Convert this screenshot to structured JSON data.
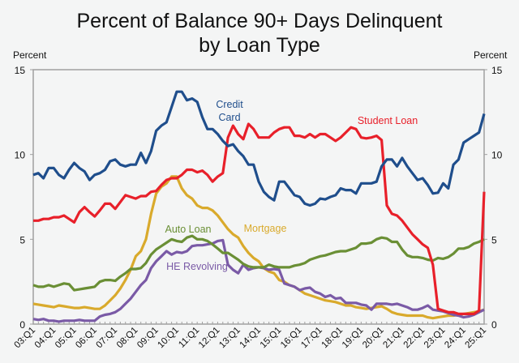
{
  "chart_data": {
    "type": "line",
    "title": [
      "Percent of Balance 90+ Days Delinquent",
      "by Loan Type"
    ],
    "ylabel_left": "Percent",
    "ylabel_right": "Percent",
    "ylim": [
      0,
      15
    ],
    "yticks": [
      0,
      5,
      10,
      15
    ],
    "grid": false,
    "x_start": "03:Q1",
    "x_end": "25:Q1",
    "x_frequency": "quarterly",
    "xtick_labels": [
      "03:Q1",
      "04:Q1",
      "05:Q1",
      "06:Q1",
      "07:Q1",
      "08:Q1",
      "09:Q1",
      "10:Q1",
      "11:Q1",
      "12:Q1",
      "13:Q1",
      "14:Q1",
      "15:Q1",
      "16:Q1",
      "17:Q1",
      "18:Q1",
      "19:Q1",
      "20:Q1",
      "21:Q1",
      "22:Q1",
      "23:Q1",
      "24:Q1",
      "25:Q1"
    ],
    "series": [
      {
        "name": "Credit Card",
        "label_lines": [
          "Credit",
          "Card"
        ],
        "color": "#1f4e8c",
        "values": [
          8.8,
          8.9,
          8.6,
          9.2,
          9.2,
          8.8,
          8.6,
          9.1,
          9.5,
          9.2,
          9.0,
          8.5,
          8.8,
          8.9,
          9.1,
          9.6,
          9.7,
          9.4,
          9.3,
          9.4,
          9.4,
          10.1,
          9.5,
          10.2,
          11.4,
          11.7,
          11.9,
          12.8,
          13.7,
          13.7,
          13.2,
          13.3,
          13.1,
          12.2,
          11.5,
          11.5,
          11.2,
          10.8,
          10.5,
          10.6,
          10.2,
          9.9,
          9.4,
          9.4,
          8.4,
          7.8,
          7.5,
          7.3,
          8.4,
          8.4,
          8.0,
          7.6,
          7.5,
          7.1,
          7.0,
          7.1,
          7.4,
          7.35,
          7.5,
          7.6,
          8.0,
          7.9,
          7.9,
          7.7,
          8.3,
          8.3,
          8.3,
          8.4,
          9.3,
          9.7,
          9.7,
          9.3,
          9.8,
          9.3,
          8.9,
          8.5,
          8.6,
          8.2,
          7.7,
          7.75,
          8.3,
          8.0,
          9.4,
          9.7,
          10.7,
          10.9,
          11.1,
          11.3,
          12.4
        ]
      },
      {
        "name": "Student Loan",
        "label_lines": [
          "Student Loan"
        ],
        "color": "#e8202a",
        "values": [
          6.1,
          6.1,
          6.2,
          6.2,
          6.3,
          6.3,
          6.4,
          6.2,
          6.0,
          6.6,
          6.9,
          6.6,
          6.35,
          6.7,
          7.1,
          7.1,
          6.8,
          7.2,
          7.6,
          7.5,
          7.4,
          7.55,
          7.55,
          7.8,
          7.85,
          8.2,
          8.5,
          8.6,
          8.6,
          8.8,
          9.1,
          9.1,
          8.95,
          9.05,
          8.8,
          8.4,
          8.7,
          8.9,
          11.0,
          11.7,
          11.2,
          10.9,
          11.8,
          11.5,
          11.0,
          11.0,
          11.0,
          11.3,
          11.5,
          11.6,
          11.6,
          11.1,
          11.1,
          11.0,
          11.2,
          11.0,
          11.2,
          11.2,
          11.0,
          10.8,
          11.0,
          11.3,
          11.6,
          11.5,
          11.0,
          10.95,
          11.0,
          11.1,
          10.85,
          7.0,
          6.5,
          6.4,
          6.1,
          5.7,
          5.3,
          5.0,
          4.7,
          4.5,
          3.5,
          0.9,
          0.8,
          0.7,
          0.7,
          0.6,
          0.6,
          0.6,
          0.6,
          0.8,
          7.8
        ]
      },
      {
        "name": "Mortgage",
        "label_lines": [
          "Mortgage"
        ],
        "color": "#d9aa2c",
        "values": [
          1.2,
          1.15,
          1.1,
          1.05,
          1.0,
          1.1,
          1.05,
          1.0,
          0.95,
          0.95,
          1.0,
          0.95,
          0.9,
          0.9,
          1.1,
          1.4,
          1.7,
          2.1,
          2.6,
          3.2,
          4.0,
          4.3,
          5.0,
          6.5,
          7.7,
          8.1,
          8.3,
          8.7,
          8.7,
          8.0,
          7.6,
          7.4,
          7.0,
          6.85,
          6.85,
          6.7,
          6.4,
          6.0,
          5.6,
          5.3,
          5.1,
          4.6,
          4.2,
          3.9,
          3.7,
          3.3,
          3.1,
          3.0,
          2.6,
          2.5,
          2.3,
          2.2,
          2.0,
          1.8,
          1.7,
          1.6,
          1.5,
          1.4,
          1.35,
          1.3,
          1.2,
          1.1,
          1.1,
          1.0,
          0.95,
          0.9,
          0.95,
          1.0,
          1.05,
          0.9,
          0.7,
          0.6,
          0.55,
          0.5,
          0.5,
          0.5,
          0.5,
          0.4,
          0.35,
          0.4,
          0.45,
          0.5,
          0.5,
          0.55,
          0.6,
          0.65,
          0.7,
          0.75,
          0.85
        ]
      },
      {
        "name": "Auto Loan",
        "label_lines": [
          "Auto Loan"
        ],
        "color": "#6a8f35",
        "values": [
          2.3,
          2.2,
          2.2,
          2.3,
          2.2,
          2.3,
          2.4,
          2.35,
          2.0,
          2.05,
          2.1,
          2.15,
          2.2,
          2.5,
          2.6,
          2.6,
          2.55,
          2.8,
          3.0,
          3.25,
          3.25,
          3.3,
          3.6,
          4.1,
          4.4,
          4.6,
          4.8,
          5.0,
          4.9,
          4.85,
          5.1,
          5.2,
          5.0,
          5.0,
          4.9,
          4.7,
          4.45,
          4.2,
          4.2,
          4.0,
          3.8,
          3.55,
          3.4,
          3.35,
          3.35,
          3.35,
          3.5,
          3.4,
          3.35,
          3.35,
          3.35,
          3.45,
          3.5,
          3.6,
          3.8,
          3.9,
          4.0,
          4.05,
          4.15,
          4.25,
          4.3,
          4.3,
          4.4,
          4.5,
          4.75,
          4.75,
          4.8,
          5.0,
          5.1,
          5.05,
          4.85,
          4.85,
          4.4,
          4.05,
          3.95,
          3.95,
          3.9,
          3.8,
          3.75,
          3.9,
          3.85,
          3.95,
          4.15,
          4.45,
          4.45,
          4.55,
          4.75,
          4.85,
          5.0
        ]
      },
      {
        "name": "HE Revolving",
        "label_lines": [
          "HE Revolving"
        ],
        "color": "#7a5aa6",
        "values": [
          0.3,
          0.25,
          0.3,
          0.2,
          0.2,
          0.15,
          0.2,
          0.2,
          0.2,
          0.25,
          0.2,
          0.2,
          0.2,
          0.45,
          0.55,
          0.6,
          0.7,
          0.9,
          1.2,
          1.5,
          1.9,
          2.3,
          2.6,
          3.3,
          3.7,
          4.0,
          4.3,
          4.1,
          4.25,
          4.2,
          4.3,
          4.6,
          4.65,
          4.65,
          4.7,
          4.75,
          4.9,
          4.95,
          3.5,
          3.2,
          3.0,
          3.5,
          3.2,
          3.3,
          3.35,
          3.3,
          3.2,
          3.25,
          3.2,
          2.4,
          2.3,
          2.2,
          2.0,
          2.1,
          2.15,
          1.9,
          1.8,
          1.6,
          1.7,
          1.5,
          1.55,
          1.25,
          1.25,
          1.25,
          1.15,
          1.1,
          0.85,
          1.2,
          1.2,
          1.2,
          1.15,
          1.2,
          1.1,
          1.0,
          0.85,
          0.85,
          0.95,
          1.1,
          0.85,
          0.8,
          0.75,
          0.65,
          0.55,
          0.5,
          0.4,
          0.45,
          0.55,
          0.7,
          0.85
        ]
      }
    ]
  }
}
